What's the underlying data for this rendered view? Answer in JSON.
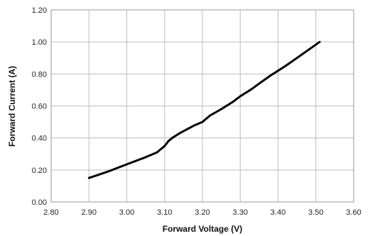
{
  "chart_data": {
    "type": "line",
    "xlabel": "Forward Voltage (V)",
    "ylabel": "Forward Current (A)",
    "xlim": [
      2.8,
      3.6
    ],
    "ylim": [
      0.0,
      1.2
    ],
    "x_ticks": [
      "2.80",
      "2.90",
      "3.00",
      "3.10",
      "3.20",
      "3.30",
      "3.40",
      "3.50",
      "3.60"
    ],
    "y_ticks": [
      "0.00",
      "0.20",
      "0.40",
      "0.60",
      "0.80",
      "1.00",
      "1.20"
    ],
    "grid": true,
    "series": [
      {
        "color": "#000000",
        "x": [
          2.9,
          2.95,
          3.0,
          3.05,
          3.08,
          3.1,
          3.11,
          3.12,
          3.14,
          3.16,
          3.18,
          3.2,
          3.22,
          3.25,
          3.28,
          3.3,
          3.33,
          3.35,
          3.38,
          3.4,
          3.42,
          3.45,
          3.48,
          3.51
        ],
        "y": [
          0.15,
          0.19,
          0.235,
          0.28,
          0.31,
          0.35,
          0.38,
          0.4,
          0.43,
          0.455,
          0.48,
          0.5,
          0.54,
          0.58,
          0.625,
          0.66,
          0.705,
          0.74,
          0.79,
          0.82,
          0.85,
          0.9,
          0.95,
          1.0
        ]
      }
    ]
  }
}
